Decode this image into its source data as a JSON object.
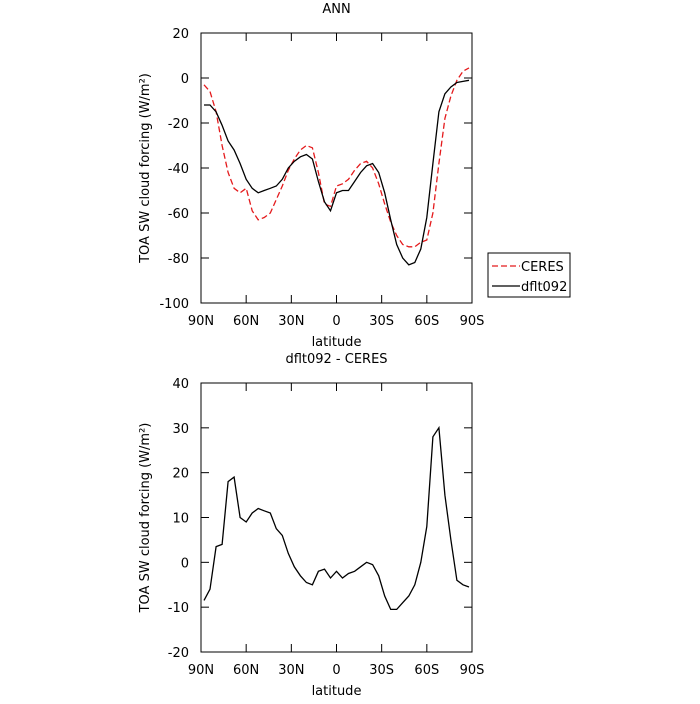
{
  "chart_data": [
    {
      "type": "line",
      "title": "ANN",
      "xlabel": "latitude",
      "ylabel": "TOA SW cloud forcing (W/m²)",
      "x": [
        88,
        84,
        80,
        76,
        72,
        68,
        64,
        60,
        56,
        52,
        48,
        44,
        40,
        36,
        32,
        28,
        24,
        20,
        16,
        12,
        8,
        4,
        0,
        -4,
        -8,
        -12,
        -16,
        -20,
        -24,
        -28,
        -32,
        -36,
        -40,
        -44,
        -48,
        -52,
        -56,
        -60,
        -64,
        -68,
        -72,
        -76,
        -80,
        -84,
        -88
      ],
      "xlim": [
        90,
        -90
      ],
      "xticks": [
        {
          "value": 90,
          "label": "90N"
        },
        {
          "value": 60,
          "label": "60N"
        },
        {
          "value": 30,
          "label": "30N"
        },
        0,
        {
          "value": -30,
          "label": "30S"
        },
        {
          "value": -60,
          "label": "60S"
        },
        {
          "value": -90,
          "label": "90S"
        }
      ],
      "ylim": [
        -100,
        20
      ],
      "yticks": [
        -100,
        -80,
        -60,
        -40,
        -20,
        0,
        20
      ],
      "legend": true,
      "series": [
        {
          "name": "CERES",
          "color": "#e41a1c",
          "dash": true,
          "values": [
            -3,
            -6,
            -15,
            -30,
            -42,
            -49,
            -51,
            -49,
            -59,
            -63,
            -62,
            -60,
            -54,
            -48,
            -41,
            -36,
            -32,
            -30,
            -31,
            -42,
            -56,
            -57,
            -48,
            -47,
            -45,
            -41,
            -38,
            -37,
            -40,
            -47,
            -56,
            -64,
            -70,
            -74,
            -75,
            -75,
            -73,
            -72,
            -60,
            -38,
            -18,
            -8,
            -1,
            3,
            4.5
          ]
        },
        {
          "name": "dflt092",
          "color": "#000000",
          "dash": false,
          "values": [
            -12,
            -12,
            -15,
            -21,
            -28,
            -32,
            -38,
            -45,
            -49,
            -51,
            -50,
            -49,
            -48,
            -45,
            -40,
            -37,
            -35,
            -34,
            -36,
            -46,
            -55,
            -59,
            -51,
            -50,
            -50,
            -46,
            -42,
            -39,
            -38,
            -42,
            -51,
            -63,
            -74,
            -80,
            -83,
            -82,
            -76,
            -62,
            -38,
            -15,
            -7,
            -4,
            -2,
            -1.5,
            -1
          ]
        }
      ]
    },
    {
      "type": "line",
      "title": "dflt092 - CERES",
      "xlabel": "latitude",
      "ylabel": "TOA SW cloud forcing (W/m²)",
      "x": [
        88,
        84,
        80,
        76,
        72,
        68,
        64,
        60,
        56,
        52,
        48,
        44,
        40,
        36,
        32,
        28,
        24,
        20,
        16,
        12,
        8,
        4,
        0,
        -4,
        -8,
        -12,
        -16,
        -20,
        -24,
        -28,
        -32,
        -36,
        -40,
        -44,
        -48,
        -52,
        -56,
        -60,
        -64,
        -68,
        -72,
        -76,
        -80,
        -84,
        -88
      ],
      "xlim": [
        90,
        -90
      ],
      "xticks": [
        {
          "value": 90,
          "label": "90N"
        },
        {
          "value": 60,
          "label": "60N"
        },
        {
          "value": 30,
          "label": "30N"
        },
        0,
        {
          "value": -30,
          "label": "30S"
        },
        {
          "value": -60,
          "label": "60S"
        },
        {
          "value": -90,
          "label": "90S"
        }
      ],
      "ylim": [
        -20,
        40
      ],
      "yticks": [
        -20,
        -10,
        0,
        10,
        20,
        30,
        40
      ],
      "color": "#000000",
      "values": [
        -8.5,
        -6,
        3.5,
        4,
        18,
        19,
        10,
        9,
        11,
        12,
        11.5,
        11,
        7.5,
        6,
        2,
        -1,
        -3,
        -4.5,
        -5,
        -2,
        -1.5,
        -3.5,
        -2,
        -3.5,
        -2.5,
        -2,
        -1,
        0,
        -0.5,
        -3,
        -7.5,
        -10.5,
        -10.5,
        -9,
        -7.5,
        -5,
        0,
        8,
        28,
        30,
        15,
        5,
        -4,
        -5,
        -5.5
      ]
    }
  ]
}
